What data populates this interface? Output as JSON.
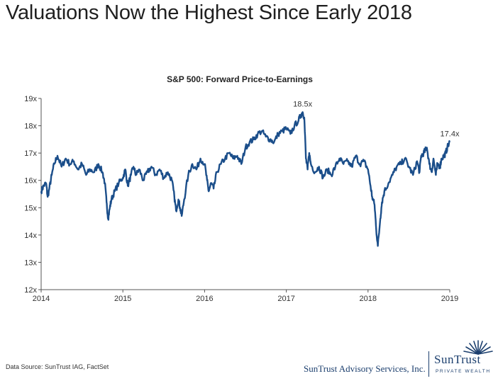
{
  "headline": "Valuations Now the Highest Since Early 2018",
  "footer": {
    "source": "Data Source: SunTrust IAG, FactSet",
    "company": "SunTrust Advisory Services, Inc."
  },
  "logo": {
    "name": "SunTrust",
    "subtitle": "PRIVATE WEALTH",
    "icon": "sunburst-icon"
  },
  "colors": {
    "line": "#1b4e8a",
    "brand": "#1c3f6e"
  },
  "chart_data": {
    "type": "line",
    "title": "S&P 500: Forward Price-to-Earnings",
    "xlabel": "",
    "ylabel": "",
    "xlim": [
      2014,
      2019
    ],
    "ylim": [
      12,
      19
    ],
    "x_ticks": [
      "2014",
      "2015",
      "2016",
      "2017",
      "2018",
      "2019"
    ],
    "y_ticks": [
      "12x",
      "13x",
      "14x",
      "15x",
      "16x",
      "17x",
      "18x",
      "19x"
    ],
    "grid": false,
    "legend": "none",
    "annotations": [
      {
        "text": "18.5x",
        "x": 2017.2,
        "y": 18.5
      },
      {
        "text": "17.4x",
        "x": 2019.0,
        "y": 17.4
      }
    ],
    "series": [
      {
        "name": "",
        "x": [
          2014.0,
          2014.03,
          2014.06,
          2014.08,
          2014.1,
          2014.13,
          2014.16,
          2014.2,
          2014.25,
          2014.3,
          2014.35,
          2014.4,
          2014.45,
          2014.5,
          2014.55,
          2014.6,
          2014.65,
          2014.7,
          2014.75,
          2014.78,
          2014.8,
          2014.82,
          2014.84,
          2014.86,
          2014.9,
          2014.95,
          2015.0,
          2015.03,
          2015.06,
          2015.1,
          2015.13,
          2015.16,
          2015.2,
          2015.25,
          2015.3,
          2015.35,
          2015.4,
          2015.45,
          2015.5,
          2015.55,
          2015.6,
          2015.63,
          2015.65,
          2015.68,
          2015.7,
          2015.72,
          2015.75,
          2015.8,
          2015.85,
          2015.9,
          2015.95,
          2016.0,
          2016.03,
          2016.05,
          2016.08,
          2016.11,
          2016.15,
          2016.2,
          2016.25,
          2016.3,
          2016.35,
          2016.4,
          2016.45,
          2016.5,
          2016.55,
          2016.6,
          2016.65,
          2016.7,
          2016.75,
          2016.8,
          2016.85,
          2016.9,
          2016.95,
          2017.0,
          2017.05,
          2017.1,
          2017.15,
          2017.18,
          2017.2,
          2017.22,
          2017.24,
          2017.26,
          2017.28,
          2017.3,
          2017.35,
          2017.4,
          2017.45,
          2017.5,
          2017.55,
          2017.6,
          2017.65,
          2017.7,
          2017.75,
          2017.8,
          2017.85,
          2017.9,
          2017.95,
          2018.0,
          2018.03,
          2018.05,
          2018.08,
          2018.1,
          2018.12,
          2018.15,
          2018.17,
          2018.2,
          2018.25,
          2018.3,
          2018.35,
          2018.4,
          2018.45,
          2018.5,
          2018.55,
          2018.6,
          2018.63,
          2018.65,
          2018.68,
          2018.7,
          2018.72,
          2018.75,
          2018.78,
          2018.8,
          2018.83,
          2018.85,
          2018.88,
          2018.9,
          2018.93,
          2018.95,
          2018.97,
          2019.0
        ],
        "values": [
          15.6,
          15.8,
          15.9,
          15.4,
          15.7,
          16.2,
          16.6,
          16.9,
          16.5,
          16.8,
          16.6,
          16.7,
          16.4,
          16.6,
          16.2,
          16.4,
          16.3,
          16.6,
          16.3,
          15.9,
          15.2,
          14.6,
          15.0,
          15.3,
          15.6,
          15.9,
          16.1,
          16.4,
          15.8,
          16.2,
          16.5,
          16.2,
          16.4,
          16.0,
          16.3,
          16.5,
          16.2,
          16.4,
          16.1,
          16.3,
          16.0,
          15.4,
          14.9,
          15.3,
          15.0,
          14.7,
          15.3,
          16.2,
          16.6,
          16.4,
          16.8,
          16.6,
          16.0,
          15.6,
          15.9,
          15.7,
          16.3,
          16.6,
          16.8,
          17.0,
          16.8,
          16.9,
          16.6,
          17.2,
          17.4,
          17.5,
          17.7,
          17.8,
          17.6,
          17.5,
          17.4,
          17.7,
          17.8,
          17.9,
          17.7,
          18.0,
          18.2,
          18.4,
          18.5,
          18.3,
          16.8,
          16.4,
          17.0,
          16.6,
          16.3,
          16.5,
          16.1,
          16.4,
          16.2,
          16.5,
          16.8,
          16.6,
          16.7,
          16.5,
          16.9,
          16.6,
          16.7,
          16.4,
          15.8,
          15.4,
          15.1,
          14.2,
          13.6,
          14.6,
          15.2,
          15.6,
          15.9,
          16.2,
          16.5,
          16.6,
          16.8,
          16.5,
          16.2,
          16.7,
          16.3,
          16.9,
          17.0,
          17.1,
          17.2,
          16.6,
          16.3,
          16.8,
          16.2,
          16.6,
          16.5,
          16.8,
          16.9,
          17.0,
          17.2,
          17.4
        ]
      }
    ]
  }
}
